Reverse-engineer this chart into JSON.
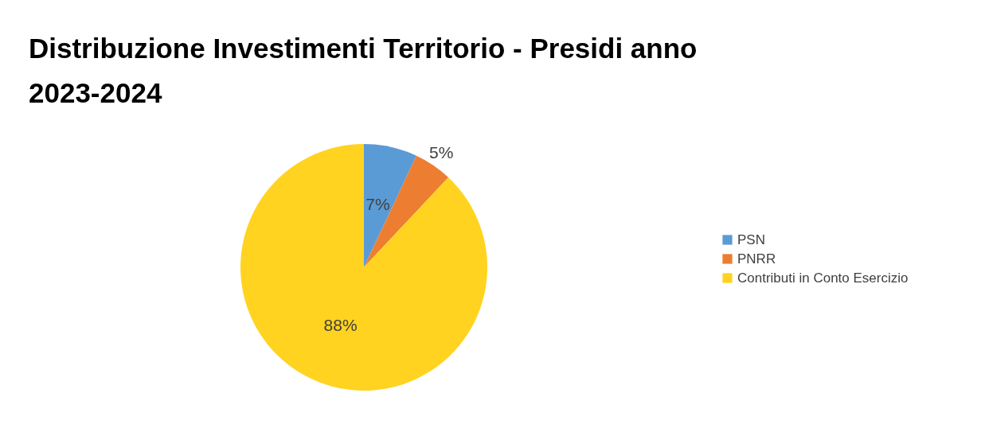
{
  "chart_data": {
    "type": "pie",
    "title": "Distribuzione Investimenti Territorio - Presidi anno 2023-2024",
    "categories": [
      "PSN",
      "PNRR",
      "Contributi in Conto Esercizio"
    ],
    "values": [
      7,
      5,
      88
    ],
    "colors": [
      "#5b9bd5",
      "#ed7d31",
      "#ffd320"
    ],
    "value_labels": [
      "7%",
      "5%",
      "88%"
    ],
    "legend": "right"
  }
}
